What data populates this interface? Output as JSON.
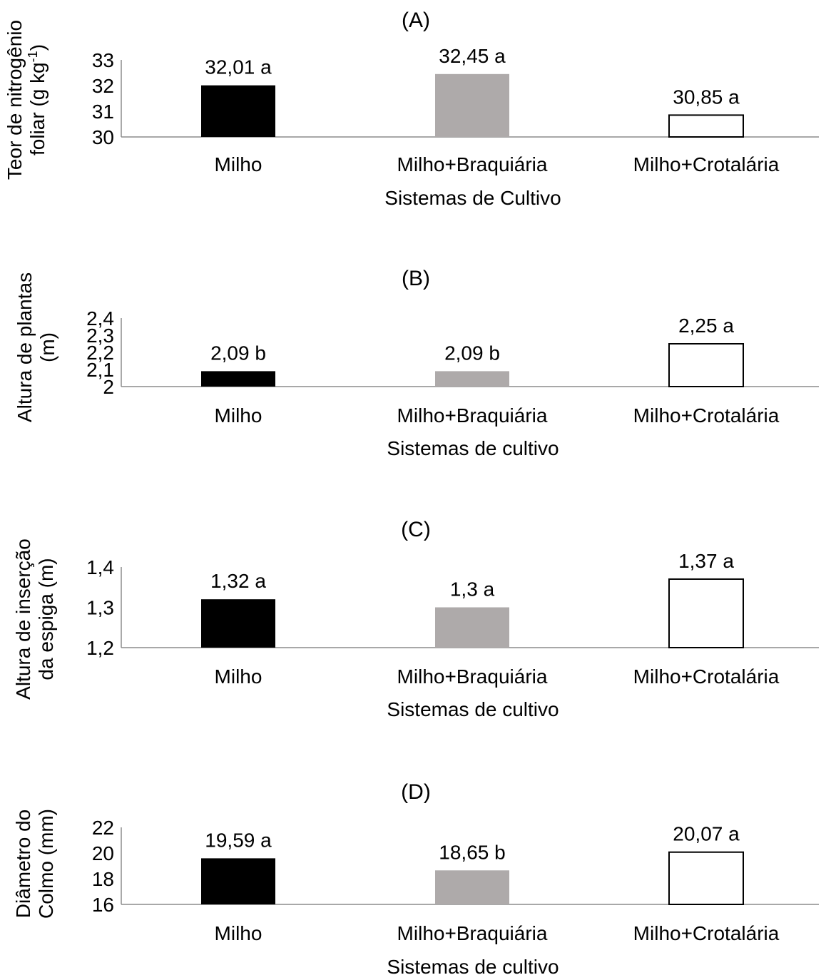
{
  "colors": {
    "milho": "#000000",
    "milho_braquiaria": "#aeaaaa",
    "milho_crotalaria": "#ffffff",
    "axis": "#8c8c8c",
    "bar_outline": "#000000"
  },
  "chart_data": [
    {
      "type": "bar",
      "title": "(A)",
      "ylabel_lines": [
        "Teor de nitrogênio",
        "foliar (g kg",
        "-1",
        ")"
      ],
      "xlabel": "Sistemas de Cultivo",
      "categories": [
        "Milho",
        "Milho+Braquiária",
        "Milho+Crotalária"
      ],
      "values": [
        32.01,
        32.45,
        30.85
      ],
      "data_labels": [
        "32,01 a",
        "32,45 a",
        "30,85 a"
      ],
      "ylim": [
        30,
        33
      ],
      "yticks": [
        30,
        31,
        32,
        33
      ],
      "ytick_labels": [
        "30",
        "31",
        "32",
        "33"
      ],
      "grid": false,
      "legend": "none"
    },
    {
      "type": "bar",
      "title": "(B)",
      "ylabel_lines": [
        "Altura de plantas",
        "(m)"
      ],
      "xlabel": "Sistemas de cultivo",
      "categories": [
        "Milho",
        "Milho+Braquiária",
        "Milho+Crotalária"
      ],
      "values": [
        2.09,
        2.09,
        2.25
      ],
      "data_labels": [
        "2,09 b",
        "2,09 b",
        "2,25 a"
      ],
      "ylim": [
        2.0,
        2.4
      ],
      "yticks": [
        2.0,
        2.1,
        2.2,
        2.3,
        2.4
      ],
      "ytick_labels": [
        "2",
        "2,1",
        "2,2",
        "2,3",
        "2,4"
      ],
      "grid": false,
      "legend": "none"
    },
    {
      "type": "bar",
      "title": "(C)",
      "ylabel_lines": [
        "Altura de inserção",
        "da espiga (m)"
      ],
      "xlabel": "Sistemas de cultivo",
      "categories": [
        "Milho",
        "Milho+Braquiária",
        "Milho+Crotalária"
      ],
      "values": [
        1.32,
        1.3,
        1.37
      ],
      "data_labels": [
        "1,32 a",
        "1,3 a",
        "1,37 a"
      ],
      "ylim": [
        1.2,
        1.4
      ],
      "yticks": [
        1.2,
        1.3,
        1.4
      ],
      "ytick_labels": [
        "1,2",
        "1,3",
        "1,4"
      ],
      "grid": false,
      "legend": "none"
    },
    {
      "type": "bar",
      "title": "(D)",
      "ylabel_lines": [
        "Diâmetro do",
        "Colmo (mm)"
      ],
      "xlabel": "Sistemas de cultivo",
      "categories": [
        "Milho",
        "Milho+Braquiária",
        "Milho+Crotalária"
      ],
      "values": [
        19.59,
        18.65,
        20.07
      ],
      "data_labels": [
        "19,59 a",
        "18,65 b",
        "20,07 a"
      ],
      "ylim": [
        16,
        22
      ],
      "yticks": [
        16,
        18,
        20,
        22
      ],
      "ytick_labels": [
        "16",
        "18",
        "20",
        "22"
      ],
      "grid": false,
      "legend": "none"
    }
  ]
}
